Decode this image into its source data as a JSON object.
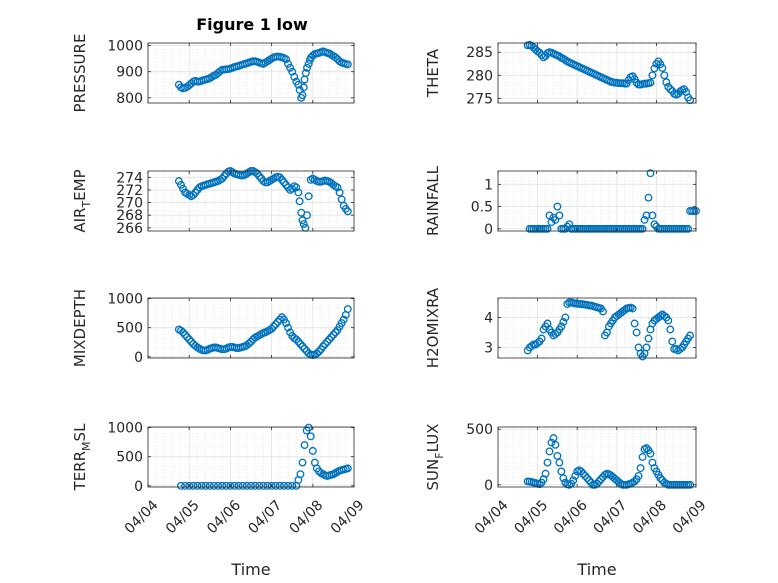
{
  "chart_data": [
    {
      "type": "scatter",
      "title": "Figure 1 low",
      "ylabel": "PRESSURE",
      "xlabel": "",
      "xlim": [
        0,
        5
      ],
      "ylim": [
        780,
        1010
      ],
      "yticks": [
        800,
        900,
        1000
      ],
      "xticks": [],
      "x": [
        0.75,
        0.8,
        0.85,
        0.9,
        0.95,
        1.0,
        1.05,
        1.1,
        1.15,
        1.2,
        1.25,
        1.3,
        1.35,
        1.4,
        1.45,
        1.5,
        1.55,
        1.6,
        1.65,
        1.7,
        1.75,
        1.8,
        1.85,
        1.9,
        1.95,
        2.0,
        2.05,
        2.1,
        2.15,
        2.2,
        2.25,
        2.3,
        2.35,
        2.4,
        2.45,
        2.5,
        2.55,
        2.6,
        2.65,
        2.7,
        2.75,
        2.8,
        2.85,
        2.9,
        2.95,
        3.0,
        3.05,
        3.1,
        3.15,
        3.2,
        3.25,
        3.3,
        3.35,
        3.4,
        3.45,
        3.5,
        3.55,
        3.6,
        3.65,
        3.68,
        3.72,
        3.75,
        3.78,
        3.8,
        3.83,
        3.86,
        3.9,
        3.93,
        3.96,
        4.0,
        4.05,
        4.1,
        4.15,
        4.2,
        4.25,
        4.3,
        4.35,
        4.4,
        4.45,
        4.5,
        4.55,
        4.6,
        4.65,
        4.7,
        4.75,
        4.8,
        4.85
      ],
      "y": [
        850,
        840,
        836,
        838,
        842,
        848,
        855,
        862,
        865,
        862,
        862,
        865,
        868,
        870,
        872,
        875,
        880,
        885,
        888,
        895,
        902,
        907,
        908,
        909,
        910,
        912,
        915,
        918,
        920,
        922,
        925,
        928,
        930,
        932,
        935,
        938,
        940,
        940,
        938,
        935,
        932,
        930,
        935,
        940,
        945,
        950,
        955,
        957,
        958,
        957,
        955,
        952,
        948,
        930,
        915,
        900,
        880,
        862,
        850,
        830,
        800,
        810,
        840,
        870,
        895,
        915,
        930,
        945,
        955,
        962,
        968,
        970,
        972,
        975,
        978,
        975,
        972,
        970,
        965,
        960,
        955,
        948,
        940,
        935,
        932,
        930,
        928
      ]
    },
    {
      "type": "scatter",
      "ylabel": "THETA",
      "xlabel": "",
      "xlim": [
        0,
        5
      ],
      "ylim": [
        274,
        287
      ],
      "yticks": [
        275,
        280,
        285
      ],
      "xticks": [],
      "x": [
        0.75,
        0.8,
        0.85,
        0.9,
        0.95,
        1.0,
        1.05,
        1.1,
        1.15,
        1.2,
        1.25,
        1.3,
        1.35,
        1.4,
        1.45,
        1.5,
        1.55,
        1.6,
        1.65,
        1.7,
        1.75,
        1.8,
        1.85,
        1.9,
        1.95,
        2.0,
        2.05,
        2.1,
        2.15,
        2.2,
        2.25,
        2.3,
        2.35,
        2.4,
        2.45,
        2.5,
        2.55,
        2.6,
        2.65,
        2.7,
        2.75,
        2.8,
        2.85,
        2.9,
        2.95,
        3.0,
        3.05,
        3.1,
        3.15,
        3.2,
        3.25,
        3.3,
        3.35,
        3.4,
        3.45,
        3.5,
        3.55,
        3.6,
        3.65,
        3.7,
        3.75,
        3.8,
        3.85,
        3.9,
        3.95,
        4.0,
        4.05,
        4.1,
        4.15,
        4.2,
        4.25,
        4.3,
        4.35,
        4.4,
        4.45,
        4.5,
        4.55,
        4.6,
        4.65,
        4.7,
        4.75,
        4.8,
        4.85
      ],
      "y": [
        286.5,
        286.6,
        286.4,
        286.0,
        285.6,
        285.2,
        284.9,
        284.4,
        283.9,
        284.2,
        284.8,
        285.0,
        284.9,
        284.7,
        284.5,
        284.3,
        284.1,
        283.8,
        283.6,
        283.3,
        283.0,
        282.8,
        282.6,
        282.4,
        282.2,
        282.0,
        281.8,
        281.6,
        281.4,
        281.2,
        281.0,
        280.8,
        280.6,
        280.4,
        280.2,
        280.0,
        279.8,
        279.6,
        279.4,
        279.2,
        279.0,
        278.8,
        278.6,
        278.5,
        278.4,
        278.4,
        278.3,
        278.3,
        278.3,
        278.2,
        278.2,
        279.0,
        279.6,
        279.8,
        279.2,
        278.4,
        278.0,
        278.0,
        278.1,
        278.2,
        278.2,
        278.3,
        278.4,
        280.0,
        281.5,
        282.5,
        283.0,
        282.4,
        281.6,
        280.0,
        278.5,
        277.5,
        277.0,
        276.6,
        276.0,
        275.8,
        276.0,
        276.5,
        276.8,
        277.0,
        276.4,
        275.2,
        274.6
      ]
    },
    {
      "type": "scatter",
      "ylabel": "AIR_TEMP",
      "xlabel": "",
      "xlim": [
        0,
        5
      ],
      "ylim": [
        265.5,
        275
      ],
      "yticks": [
        266,
        268,
        270,
        272,
        274
      ],
      "xticks": [],
      "x": [
        0.75,
        0.8,
        0.85,
        0.9,
        0.95,
        1.0,
        1.05,
        1.1,
        1.15,
        1.2,
        1.25,
        1.3,
        1.35,
        1.4,
        1.45,
        1.5,
        1.55,
        1.6,
        1.65,
        1.7,
        1.75,
        1.8,
        1.85,
        1.9,
        1.95,
        2.0,
        2.05,
        2.1,
        2.15,
        2.2,
        2.25,
        2.3,
        2.35,
        2.4,
        2.45,
        2.5,
        2.55,
        2.6,
        2.65,
        2.7,
        2.75,
        2.8,
        2.85,
        2.9,
        2.95,
        3.0,
        3.05,
        3.1,
        3.15,
        3.2,
        3.25,
        3.3,
        3.35,
        3.4,
        3.45,
        3.5,
        3.55,
        3.6,
        3.65,
        3.68,
        3.72,
        3.75,
        3.78,
        3.82,
        3.86,
        3.9,
        3.95,
        4.0,
        4.05,
        4.1,
        4.15,
        4.2,
        4.25,
        4.3,
        4.35,
        4.4,
        4.45,
        4.5,
        4.55,
        4.6,
        4.65,
        4.7,
        4.75,
        4.8,
        4.85
      ],
      "y": [
        273.4,
        272.8,
        272.2,
        271.6,
        271.4,
        271.2,
        271.0,
        271.2,
        271.6,
        272.0,
        272.4,
        272.6,
        272.7,
        272.8,
        272.9,
        273.0,
        273.1,
        273.2,
        273.3,
        273.4,
        273.6,
        273.8,
        274.2,
        274.6,
        274.9,
        275.0,
        274.8,
        274.6,
        274.5,
        274.4,
        274.3,
        274.3,
        274.4,
        274.6,
        274.8,
        275.0,
        275.0,
        274.8,
        274.6,
        274.2,
        273.8,
        273.4,
        273.2,
        273.2,
        273.4,
        273.6,
        273.8,
        274.0,
        274.1,
        274.0,
        273.6,
        273.2,
        272.8,
        272.4,
        272.0,
        272.2,
        272.6,
        272.4,
        271.6,
        270.2,
        268.4,
        267.2,
        266.6,
        266.0,
        268.0,
        271.0,
        273.6,
        273.8,
        273.6,
        273.4,
        273.3,
        273.3,
        273.4,
        273.5,
        273.4,
        273.3,
        273.1,
        272.8,
        272.6,
        272.4,
        271.6,
        270.5,
        269.5,
        269.0,
        268.6
      ]
    },
    {
      "type": "scatter",
      "ylabel": "RAINFALL",
      "xlabel": "",
      "xlim": [
        0,
        5
      ],
      "ylim": [
        -0.05,
        1.3
      ],
      "yticks": [
        0,
        0.5,
        1
      ],
      "xticks": [],
      "x": [
        0.8,
        0.85,
        0.9,
        0.95,
        1.0,
        1.05,
        1.1,
        1.15,
        1.2,
        1.25,
        1.3,
        1.35,
        1.4,
        1.45,
        1.5,
        1.55,
        1.6,
        1.65,
        1.7,
        1.75,
        1.8,
        1.85,
        1.9,
        1.95,
        2.0,
        2.05,
        2.1,
        2.15,
        2.2,
        2.25,
        2.3,
        2.35,
        2.4,
        2.45,
        2.5,
        2.55,
        2.6,
        2.65,
        2.7,
        2.75,
        2.8,
        2.85,
        2.9,
        2.95,
        3.0,
        3.05,
        3.1,
        3.15,
        3.2,
        3.25,
        3.3,
        3.35,
        3.4,
        3.45,
        3.5,
        3.55,
        3.6,
        3.65,
        3.7,
        3.75,
        3.8,
        3.85,
        3.9,
        3.95,
        4.0,
        4.05,
        4.1,
        4.15,
        4.2,
        4.25,
        4.3,
        4.35,
        4.4,
        4.45,
        4.5,
        4.55,
        4.6,
        4.65,
        4.7,
        4.75,
        4.8,
        4.85,
        4.9,
        4.95,
        5.0
      ],
      "y": [
        0,
        0,
        0,
        0,
        0,
        0,
        0,
        0,
        0,
        0,
        0.3,
        0.15,
        0.25,
        0.2,
        0.5,
        0.3,
        0,
        0,
        0,
        0.05,
        0.1,
        0,
        0,
        0,
        0,
        0,
        0,
        0,
        0,
        0,
        0,
        0,
        0,
        0,
        0,
        0,
        0,
        0,
        0,
        0,
        0,
        0,
        0,
        0,
        0,
        0,
        0,
        0,
        0,
        0,
        0,
        0,
        0,
        0,
        0,
        0,
        0,
        0,
        0.2,
        0.3,
        0.7,
        1.25,
        0.3,
        0.1,
        0.05,
        0,
        0,
        0,
        0,
        0,
        0,
        0,
        0,
        0,
        0,
        0,
        0,
        0,
        0,
        0,
        0,
        0.4,
        0.4,
        0.4,
        0.4
      ]
    },
    {
      "type": "scatter",
      "ylabel": "MIXDEPTH",
      "xlabel": "",
      "xlim": [
        0,
        5
      ],
      "ylim": [
        -20,
        1010
      ],
      "yticks": [
        0,
        500,
        1000
      ],
      "xticks": [],
      "x": [
        0.75,
        0.8,
        0.85,
        0.9,
        0.95,
        1.0,
        1.05,
        1.1,
        1.15,
        1.2,
        1.25,
        1.3,
        1.35,
        1.4,
        1.45,
        1.5,
        1.55,
        1.6,
        1.65,
        1.7,
        1.75,
        1.8,
        1.85,
        1.9,
        1.95,
        2.0,
        2.05,
        2.1,
        2.15,
        2.2,
        2.25,
        2.3,
        2.35,
        2.4,
        2.45,
        2.5,
        2.55,
        2.6,
        2.65,
        2.7,
        2.75,
        2.8,
        2.85,
        2.9,
        2.95,
        3.0,
        3.05,
        3.1,
        3.15,
        3.2,
        3.25,
        3.3,
        3.35,
        3.4,
        3.45,
        3.5,
        3.55,
        3.6,
        3.65,
        3.7,
        3.75,
        3.8,
        3.85,
        3.9,
        3.95,
        4.0,
        4.05,
        4.1,
        4.15,
        4.2,
        4.25,
        4.3,
        4.35,
        4.4,
        4.45,
        4.5,
        4.55,
        4.6,
        4.65,
        4.7,
        4.75,
        4.8,
        4.85
      ],
      "y": [
        470,
        450,
        420,
        380,
        340,
        300,
        260,
        220,
        190,
        160,
        140,
        120,
        110,
        110,
        120,
        140,
        150,
        160,
        160,
        150,
        140,
        130,
        130,
        140,
        160,
        170,
        170,
        160,
        150,
        150,
        160,
        170,
        180,
        200,
        230,
        260,
        300,
        330,
        350,
        370,
        390,
        410,
        420,
        440,
        460,
        480,
        520,
        560,
        600,
        640,
        680,
        640,
        580,
        500,
        420,
        360,
        320,
        300,
        260,
        220,
        180,
        140,
        100,
        60,
        40,
        30,
        40,
        60,
        90,
        130,
        180,
        220,
        260,
        300,
        340,
        380,
        420,
        460,
        520,
        580,
        640,
        720,
        820
      ]
    },
    {
      "type": "scatter",
      "ylabel": "H2OMIXRA",
      "xlabel": "",
      "xlim": [
        0,
        5
      ],
      "ylim": [
        2.65,
        4.65
      ],
      "yticks": [
        3,
        4
      ],
      "xticks": [],
      "x": [
        0.75,
        0.8,
        0.85,
        0.9,
        0.95,
        1.0,
        1.05,
        1.1,
        1.15,
        1.2,
        1.25,
        1.3,
        1.35,
        1.4,
        1.45,
        1.5,
        1.55,
        1.6,
        1.65,
        1.7,
        1.75,
        1.8,
        1.85,
        1.9,
        1.95,
        2.0,
        2.05,
        2.1,
        2.15,
        2.2,
        2.25,
        2.3,
        2.35,
        2.4,
        2.45,
        2.5,
        2.55,
        2.6,
        2.65,
        2.7,
        2.75,
        2.8,
        2.85,
        2.9,
        2.95,
        3.0,
        3.05,
        3.1,
        3.15,
        3.2,
        3.25,
        3.3,
        3.35,
        3.4,
        3.45,
        3.5,
        3.55,
        3.6,
        3.65,
        3.7,
        3.75,
        3.8,
        3.85,
        3.9,
        3.95,
        4.0,
        4.05,
        4.1,
        4.15,
        4.2,
        4.25,
        4.3,
        4.35,
        4.4,
        4.45,
        4.5,
        4.55,
        4.6,
        4.65,
        4.7,
        4.75,
        4.8,
        4.85
      ],
      "y": [
        2.9,
        3.0,
        3.05,
        3.1,
        3.1,
        3.15,
        3.2,
        3.3,
        3.6,
        3.7,
        3.8,
        3.6,
        3.5,
        3.4,
        3.45,
        3.5,
        3.6,
        3.7,
        3.85,
        4.0,
        4.45,
        4.5,
        4.5,
        4.48,
        4.47,
        4.46,
        4.45,
        4.45,
        4.44,
        4.43,
        4.42,
        4.4,
        4.4,
        4.38,
        4.36,
        4.34,
        4.32,
        4.3,
        4.2,
        3.4,
        3.5,
        3.7,
        3.8,
        3.9,
        4.0,
        4.05,
        4.1,
        4.15,
        4.2,
        4.25,
        4.3,
        4.32,
        4.33,
        4.3,
        3.8,
        3.5,
        3.0,
        2.8,
        2.7,
        2.8,
        3.0,
        3.3,
        3.6,
        3.8,
        3.9,
        3.95,
        4.0,
        4.05,
        4.1,
        4.05,
        4.0,
        3.9,
        3.6,
        3.2,
        2.95,
        2.95,
        2.9,
        2.95,
        3.0,
        3.1,
        3.2,
        3.3,
        3.4
      ]
    },
    {
      "type": "scatter",
      "ylabel": "TERR_MSL",
      "xlabel": "Time",
      "xlim": [
        0,
        5
      ],
      "ylim": [
        -20,
        1010
      ],
      "yticks": [
        0,
        500,
        1000
      ],
      "xticks": [
        "04/04",
        "04/05",
        "04/06",
        "04/07",
        "04/08",
        "04/09"
      ],
      "x": [
        0.8,
        0.9,
        1.0,
        1.1,
        1.2,
        1.3,
        1.4,
        1.5,
        1.6,
        1.7,
        1.8,
        1.9,
        2.0,
        2.1,
        2.2,
        2.3,
        2.4,
        2.5,
        2.6,
        2.7,
        2.8,
        2.9,
        3.0,
        3.1,
        3.2,
        3.3,
        3.4,
        3.5,
        3.6,
        3.65,
        3.7,
        3.75,
        3.8,
        3.85,
        3.9,
        3.95,
        4.0,
        4.05,
        4.1,
        4.15,
        4.2,
        4.25,
        4.3,
        4.35,
        4.4,
        4.45,
        4.5,
        4.55,
        4.6,
        4.65,
        4.7,
        4.75,
        4.8,
        4.85
      ],
      "y": [
        0,
        0,
        0,
        0,
        0,
        0,
        0,
        0,
        0,
        0,
        0,
        0,
        0,
        0,
        0,
        0,
        0,
        0,
        0,
        0,
        0,
        0,
        0,
        0,
        0,
        0,
        0,
        0,
        0,
        100,
        200,
        400,
        700,
        950,
        1000,
        850,
        600,
        400,
        300,
        250,
        220,
        200,
        180,
        170,
        180,
        190,
        200,
        220,
        240,
        260,
        270,
        280,
        290,
        300
      ]
    },
    {
      "type": "scatter",
      "ylabel": "SUN_FLUX",
      "xlabel": "Time",
      "xlim": [
        0,
        5
      ],
      "ylim": [
        -20,
        520
      ],
      "yticks": [
        0,
        500
      ],
      "xticks": [
        "04/04",
        "04/05",
        "04/06",
        "04/07",
        "04/08",
        "04/09"
      ],
      "x": [
        0.75,
        0.8,
        0.85,
        0.9,
        0.95,
        1.0,
        1.05,
        1.1,
        1.15,
        1.2,
        1.25,
        1.3,
        1.35,
        1.4,
        1.45,
        1.5,
        1.55,
        1.6,
        1.65,
        1.7,
        1.75,
        1.8,
        1.85,
        1.9,
        1.95,
        2.0,
        2.05,
        2.1,
        2.15,
        2.2,
        2.25,
        2.3,
        2.35,
        2.4,
        2.45,
        2.5,
        2.55,
        2.6,
        2.65,
        2.7,
        2.75,
        2.8,
        2.85,
        2.9,
        2.95,
        3.0,
        3.05,
        3.1,
        3.15,
        3.2,
        3.25,
        3.3,
        3.35,
        3.4,
        3.45,
        3.5,
        3.55,
        3.6,
        3.65,
        3.7,
        3.75,
        3.8,
        3.85,
        3.9,
        3.95,
        4.0,
        4.05,
        4.1,
        4.15,
        4.2,
        4.25,
        4.3,
        4.35,
        4.4,
        4.45,
        4.5,
        4.55,
        4.6,
        4.65,
        4.7,
        4.75,
        4.8,
        4.85
      ],
      "y": [
        30,
        28,
        25,
        20,
        15,
        10,
        5,
        20,
        50,
        100,
        200,
        300,
        380,
        420,
        360,
        260,
        200,
        120,
        60,
        20,
        5,
        0,
        10,
        40,
        80,
        120,
        130,
        120,
        100,
        80,
        60,
        40,
        20,
        0,
        0,
        10,
        30,
        50,
        70,
        90,
        100,
        95,
        85,
        70,
        55,
        40,
        25,
        10,
        0,
        0,
        0,
        5,
        10,
        20,
        30,
        50,
        80,
        150,
        250,
        320,
        330,
        310,
        280,
        200,
        150,
        120,
        90,
        60,
        40,
        20,
        10,
        0,
        0,
        0,
        0,
        0,
        0,
        0,
        0,
        0,
        0,
        0,
        0
      ]
    }
  ]
}
